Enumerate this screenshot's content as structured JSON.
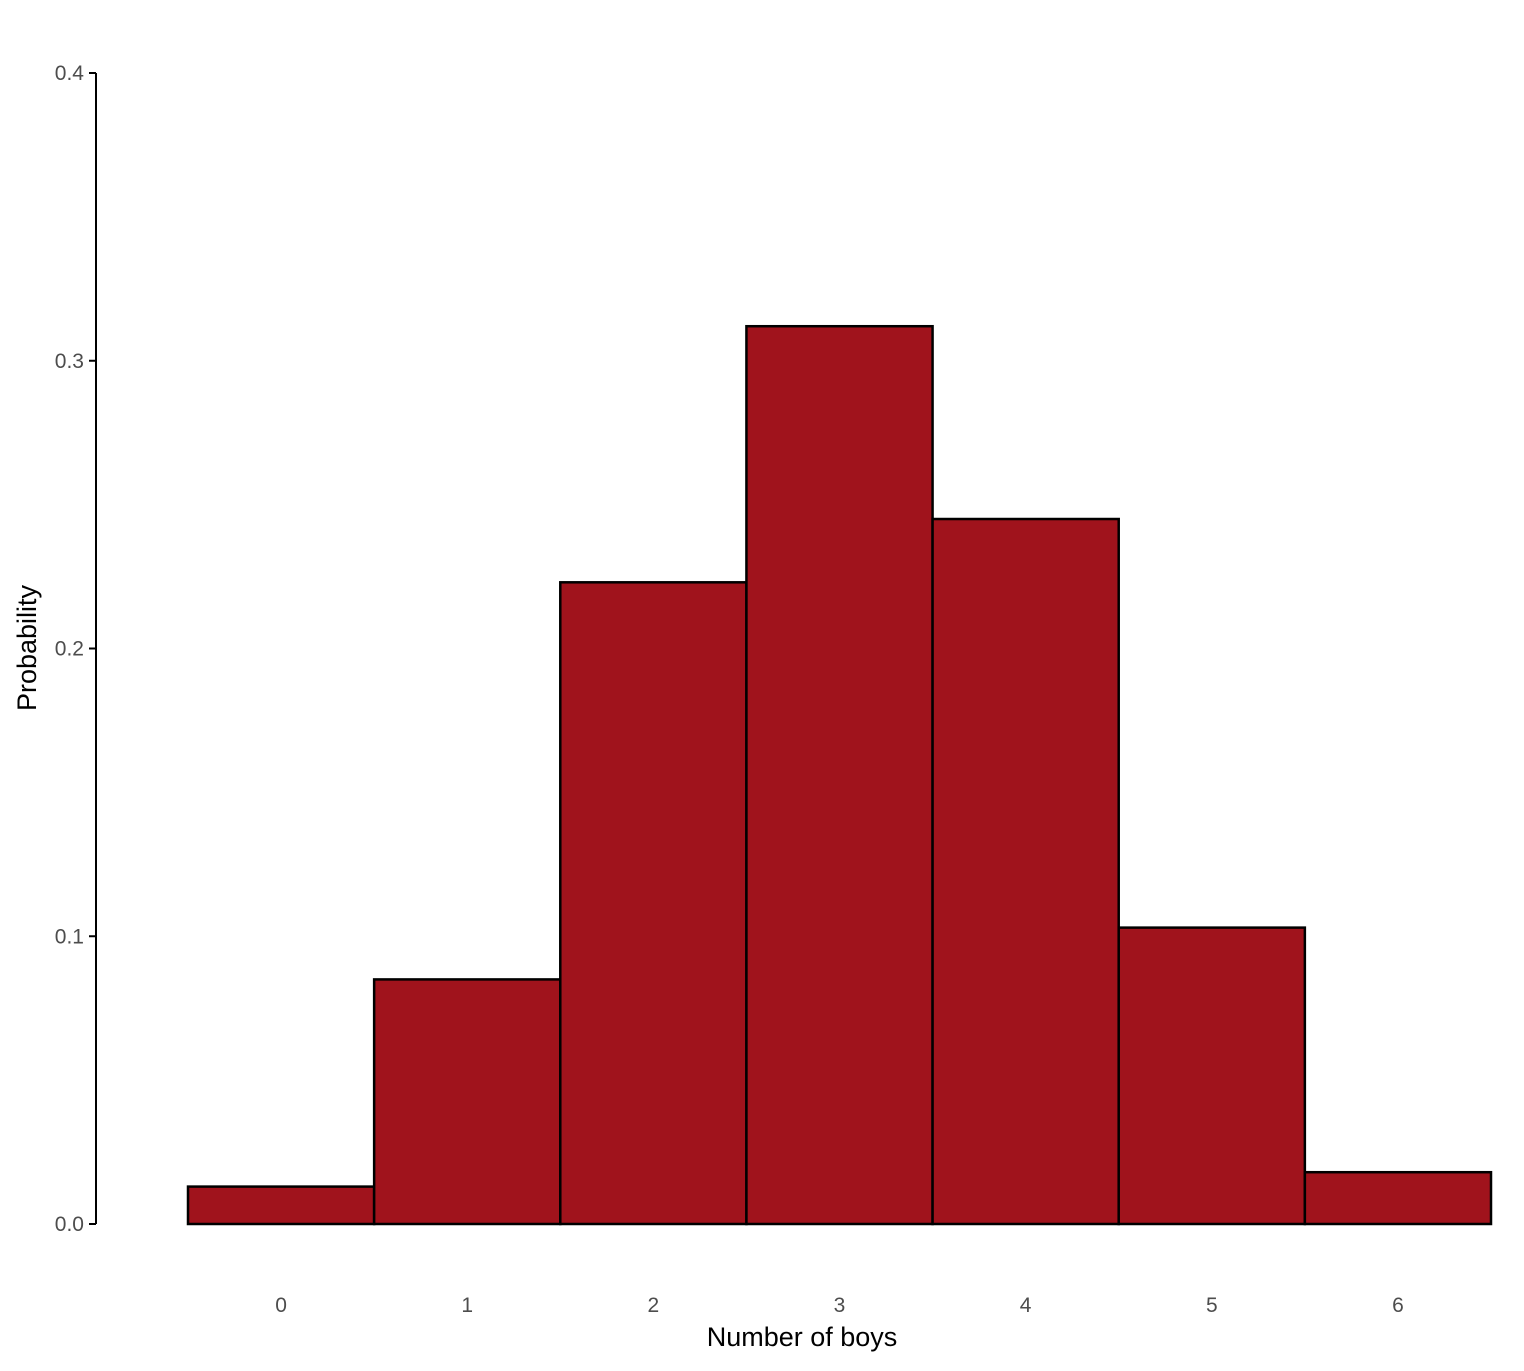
{
  "chart_data": {
    "type": "bar",
    "title": "",
    "xlabel": "Number of boys",
    "ylabel": "Probability",
    "categories": [
      "0",
      "1",
      "2",
      "3",
      "4",
      "5",
      "6"
    ],
    "values": [
      0.013,
      0.085,
      0.223,
      0.312,
      0.245,
      0.103,
      0.018
    ],
    "ylim": [
      0,
      0.4
    ],
    "yticks": [
      {
        "value": 0.0,
        "label": "0.0"
      },
      {
        "value": 0.1,
        "label": "0.1"
      },
      {
        "value": 0.2,
        "label": "0.2"
      },
      {
        "value": 0.3,
        "label": "0.3"
      },
      {
        "value": 0.4,
        "label": "0.4"
      }
    ],
    "bar_color": "#a0131c",
    "bar_edge_color": "#000000",
    "grid": false,
    "legend": "none"
  }
}
